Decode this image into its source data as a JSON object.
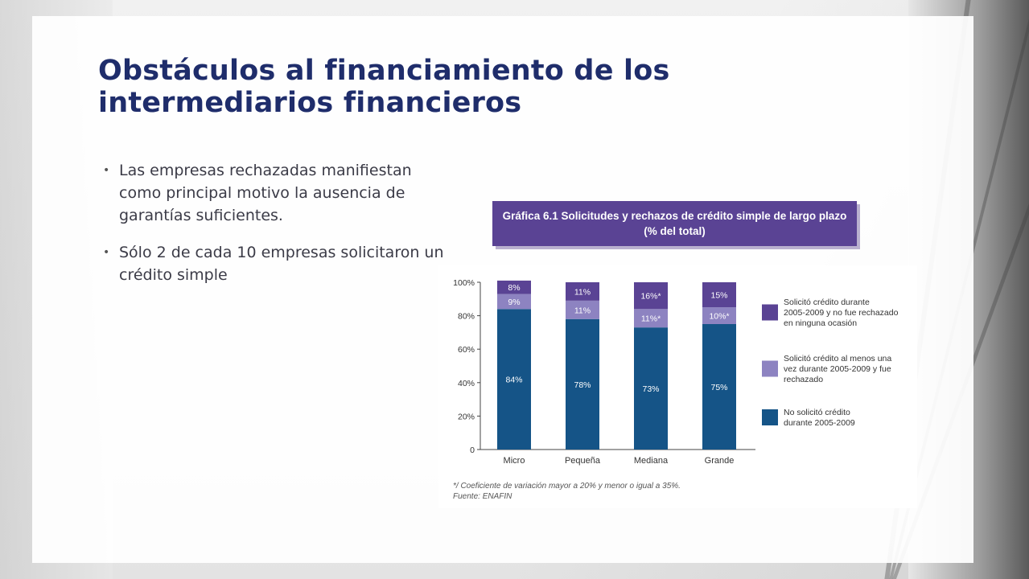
{
  "slide": {
    "title": "Obstáculos al financiamiento de los intermediarios financieros",
    "bullets": [
      "Las empresas rechazadas manifiestan como principal motivo la ausencia de garantías suficientes.",
      "Sólo 2 de cada 10 empresas solicitaron un crédito simple"
    ],
    "bullet_glyph": "•"
  },
  "chart_data": {
    "type": "bar",
    "stacked": true,
    "title_line1": "Gráfica 6.1 Solicitudes y rechazos de crédito simple de largo plazo",
    "title_line2": "(% del total)",
    "categories": [
      "Micro",
      "Pequeña",
      "Mediana",
      "Grande"
    ],
    "series": [
      {
        "name": "No solicitó crédito durante 2005-2009",
        "values": [
          84,
          78,
          73,
          75
        ],
        "labels": [
          "84%",
          "78%",
          "73%",
          "75%"
        ],
        "color": "#155487"
      },
      {
        "name": "Solicitó crédito al menos una vez durante 2005-2009 y fue rechazado",
        "values": [
          9,
          11,
          11,
          10
        ],
        "labels": [
          "9%",
          "11%",
          "11%*",
          "10%*"
        ],
        "color": "#8d83c1"
      },
      {
        "name": "Solicitó crédito durante 2005-2009 y no fue rechazado en ninguna ocasión",
        "values": [
          8,
          11,
          16,
          15
        ],
        "labels": [
          "8%",
          "11%",
          "16%*",
          "15%"
        ],
        "color": "#5a4394"
      }
    ],
    "legend_order": [
      2,
      1,
      0
    ],
    "legend_lines": [
      [
        "Solicitó crédito durante",
        "2005-2009 y no fue rechazado",
        "en ninguna ocasión"
      ],
      [
        "Solicitó crédito al menos una",
        "vez durante 2005-2009 y fue",
        "rechazado"
      ],
      [
        "No solicitó crédito",
        "durante 2005-2009"
      ]
    ],
    "yticks": [
      "100%",
      "80%",
      "60%",
      "40%",
      "20%",
      "0"
    ],
    "ylim": [
      0,
      100
    ],
    "legend_position": "right",
    "grid": false,
    "footnote": "*/ Coeficiente de variación mayor a 20% y menor o igual a 35%.",
    "source": "Fuente: ENAFIN"
  }
}
